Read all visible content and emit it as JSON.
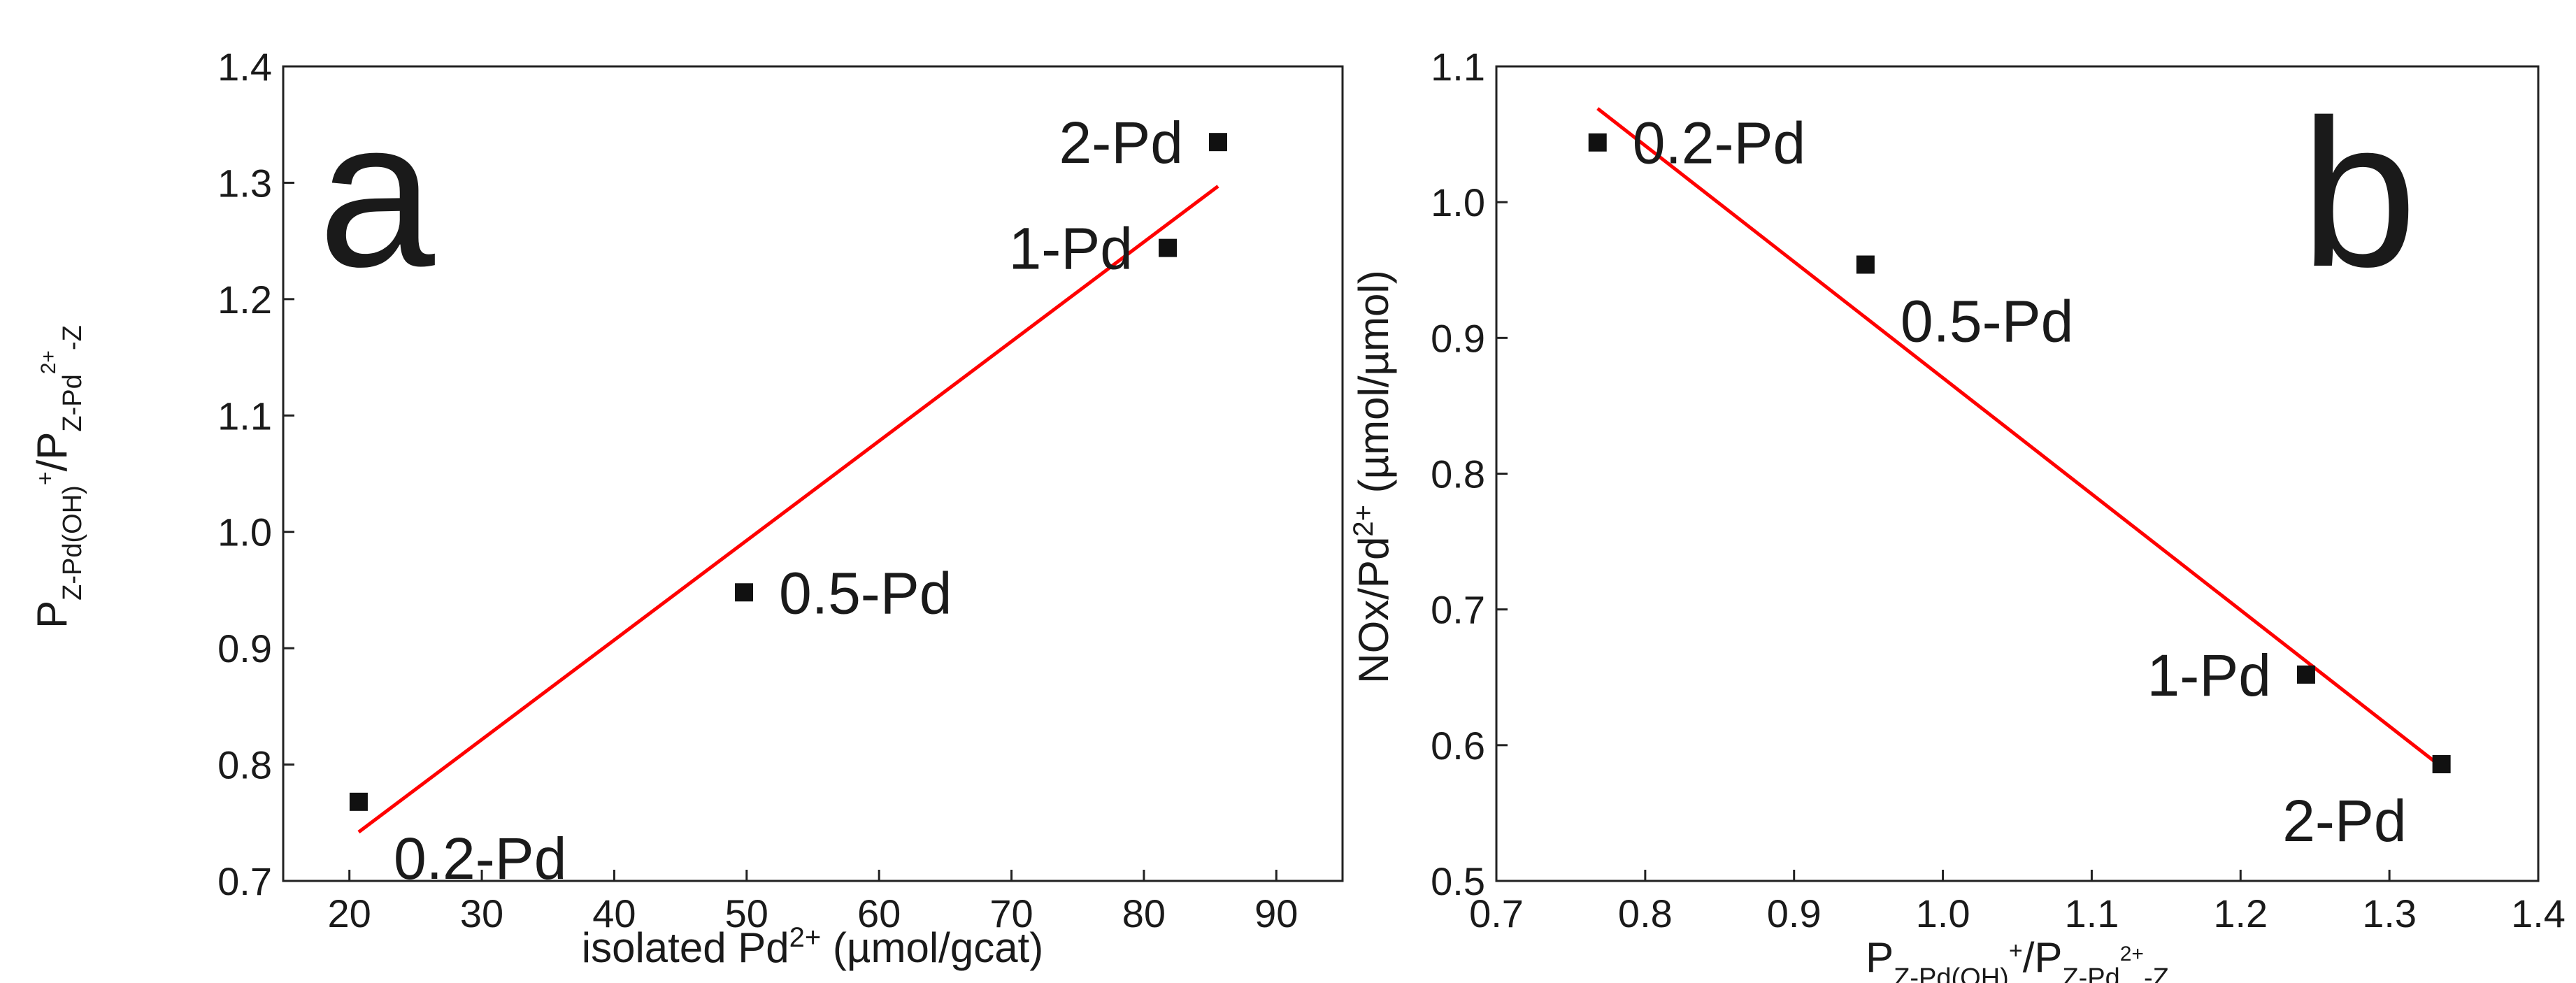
{
  "chart_data": [
    {
      "type": "scatter",
      "panel_label": "a",
      "xlabel": {
        "main": "isolated Pd",
        "sup": "2+",
        "rest": " (µmol/gcat)"
      },
      "ylabel": {
        "p1": "P",
        "sub1": "Z-Pd(OH)",
        "sup1": "+",
        "slash": "/P",
        "sub2": "Z-Pd",
        "sup2": "2+",
        "sub3": "-Z"
      },
      "xlim": [
        15,
        95
      ],
      "ylim": [
        0.7,
        1.4
      ],
      "xticks": [
        20,
        30,
        40,
        50,
        60,
        70,
        80,
        90
      ],
      "yticks": [
        0.7,
        0.8,
        0.9,
        1.0,
        1.1,
        1.2,
        1.3,
        1.4
      ],
      "xtick_labels": [
        "20",
        "30",
        "40",
        "50",
        "60",
        "70",
        "80",
        "90"
      ],
      "ytick_labels": [
        "0.7",
        "0.8",
        "0.9",
        "1.0",
        "1.1",
        "1.2",
        "1.3",
        "1.4"
      ],
      "points": [
        {
          "label": "0.2-Pd",
          "x": 20.7,
          "y": 0.768,
          "label_pos": "below-right"
        },
        {
          "label": "0.5-Pd",
          "x": 49.8,
          "y": 0.948,
          "label_pos": "right"
        },
        {
          "label": "1-Pd",
          "x": 81.8,
          "y": 1.244,
          "label_pos": "left"
        },
        {
          "label": "2-Pd",
          "x": 85.6,
          "y": 1.335,
          "label_pos": "left"
        }
      ],
      "fit_line": {
        "x": [
          20.7,
          85.6
        ],
        "y": [
          0.742,
          1.297
        ]
      },
      "fit_color": "#ff0000",
      "marker_color": "#111111"
    },
    {
      "type": "scatter",
      "panel_label": "b",
      "xlabel": {
        "p1": "P",
        "sub1": "Z-Pd(OH)",
        "sup1": "+",
        "slash": "/P",
        "sub2": "Z-Pd",
        "sup2": "2+",
        "sub3": "-Z"
      },
      "ylabel": {
        "main": "NOx/Pd",
        "sup": "2+",
        "rest": " (µmol/µmol)"
      },
      "xlim": [
        0.7,
        1.4
      ],
      "ylim": [
        0.5,
        1.1
      ],
      "xticks": [
        0.7,
        0.8,
        0.9,
        1.0,
        1.1,
        1.2,
        1.3,
        1.4
      ],
      "yticks": [
        0.5,
        0.6,
        0.7,
        0.8,
        0.9,
        1.0,
        1.1
      ],
      "xtick_labels": [
        "0.7",
        "0.8",
        "0.9",
        "1.0",
        "1.1",
        "1.2",
        "1.3",
        "1.4"
      ],
      "ytick_labels": [
        "0.5",
        "0.6",
        "0.7",
        "0.8",
        "0.9",
        "1.0",
        "1.1"
      ],
      "points": [
        {
          "label": "0.2-Pd",
          "x": 0.768,
          "y": 1.044,
          "label_pos": "right"
        },
        {
          "label": "0.5-Pd",
          "x": 0.948,
          "y": 0.954,
          "label_pos": "below-right"
        },
        {
          "label": "1-Pd",
          "x": 1.244,
          "y": 0.652,
          "label_pos": "left"
        },
        {
          "label": "2-Pd",
          "x": 1.335,
          "y": 0.586,
          "label_pos": "below-left"
        }
      ],
      "fit_line": {
        "x": [
          0.768,
          1.335
        ],
        "y": [
          1.069,
          0.584
        ]
      },
      "fit_color": "#ff0000",
      "marker_color": "#111111"
    }
  ]
}
